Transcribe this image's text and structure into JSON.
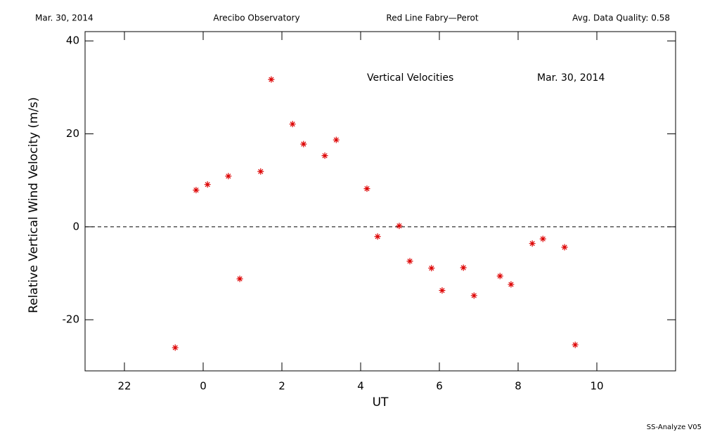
{
  "chart_data": {
    "type": "scatter",
    "header": [
      "Mar. 30, 2014",
      "Arecibo Observatory",
      "Red Line Fabry—Perot",
      "Avg. Data Quality: 0.58"
    ],
    "annotations": [
      "Vertical Velocities",
      "Mar. 30, 2014"
    ],
    "footer": "SS-Analyze V05",
    "xlabel": "UT",
    "ylabel": "Relative Vertical Wind Velocity (m/s)",
    "xlim": [
      -3,
      12
    ],
    "ylim": [
      -31,
      42
    ],
    "xticks": [
      {
        "value": -2,
        "label": "22"
      },
      0,
      2,
      4,
      6,
      8,
      10
    ],
    "yticks": [
      -20,
      0,
      20,
      40
    ],
    "hline": 0,
    "color": "#dd0000",
    "x": [
      -0.71,
      -0.18,
      0.11,
      0.64,
      0.93,
      1.46,
      1.73,
      2.27,
      2.55,
      3.09,
      3.38,
      4.16,
      4.43,
      4.98,
      5.25,
      5.8,
      6.07,
      6.61,
      6.88,
      7.54,
      7.82,
      8.36,
      8.63,
      9.18,
      9.45
    ],
    "values": [
      -26.0,
      7.9,
      9.1,
      10.9,
      -11.2,
      11.9,
      31.7,
      22.1,
      17.8,
      15.3,
      18.7,
      8.2,
      -2.1,
      0.2,
      -7.4,
      -8.9,
      -13.7,
      -8.8,
      -14.8,
      -10.6,
      -12.4,
      -3.6,
      -2.6,
      -4.4,
      -25.4
    ]
  }
}
